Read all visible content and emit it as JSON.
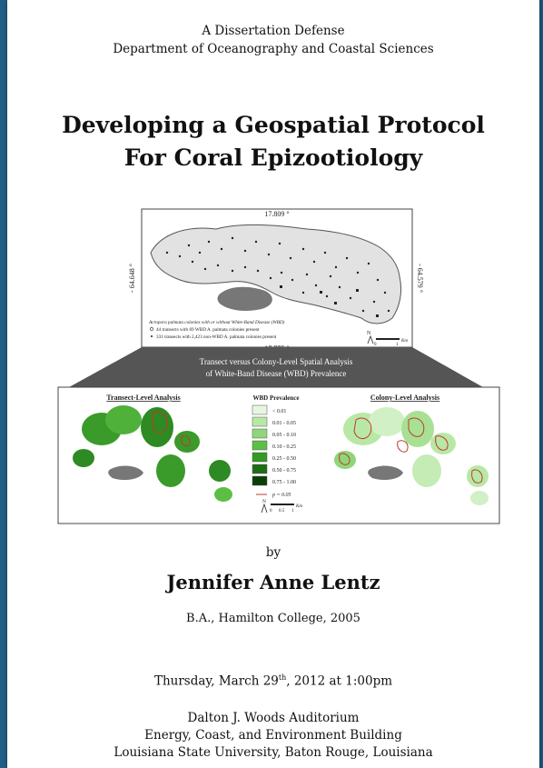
{
  "header": {
    "line1": "A Dissertation Defense",
    "line2": "Department of Oceanography and Coastal Sciences"
  },
  "title": {
    "line1": "Developing a Geospatial Protocol",
    "line2": "For Coral Epizootiology"
  },
  "top_map": {
    "coord_top": "17.809 °",
    "coord_bottom": "17.775 °",
    "coord_left": "- 64.648 °",
    "coord_right": "- 64.579 °",
    "legend_title": "Acropora palmata colonies with or without White-Band Disease (WBD)",
    "legend_line1": "44  transects with 69 WBD A. palmata colonies present",
    "legend_line2": "331 transects with 2,423 non-WBD A. palmata colonies present",
    "scale_zero": "0",
    "scale_one": "1",
    "scale_unit": "Km",
    "north": "N"
  },
  "banner": {
    "line1": "Transect versus Colony-Level Spatial Analysis",
    "line2": "of White-Band Disease (WBD) Prevalence"
  },
  "analysis": {
    "left_title": "Transect-Level Analysis",
    "right_title": "Colony-Level Analysis",
    "legend_title": "WBD Prevalence",
    "legend_items": [
      {
        "label": "< 0.01",
        "color": "#e6f7df"
      },
      {
        "label": "0.01 - 0.05",
        "color": "#b8e8a6"
      },
      {
        "label": "0.05 - 0.10",
        "color": "#8fd67a"
      },
      {
        "label": "0.10 - 0.25",
        "color": "#5cbf45"
      },
      {
        "label": "0.25 - 0.50",
        "color": "#349a24"
      },
      {
        "label": "0.50 - 0.75",
        "color": "#1f6e15"
      },
      {
        "label": "0.75 - 1.00",
        "color": "#0c3d08"
      }
    ],
    "p_label": "p = 0.05",
    "scale_zero": "0",
    "scale_half": "0.5",
    "scale_one": "1",
    "scale_unit": "Km",
    "north": "N"
  },
  "by": "by",
  "author": "Jennifer Anne Lentz",
  "degree": "B.A., Hamilton College, 2005",
  "date": {
    "pre": "Thursday, March 29",
    "sup": "th",
    "post": ", 2012 at 1:00pm"
  },
  "venue": {
    "line1": "Dalton J. Woods Auditorium",
    "line2": "Energy, Coast, and Environment Building",
    "line3": "Louisiana State University, Baton Rouge, Louisiana"
  }
}
